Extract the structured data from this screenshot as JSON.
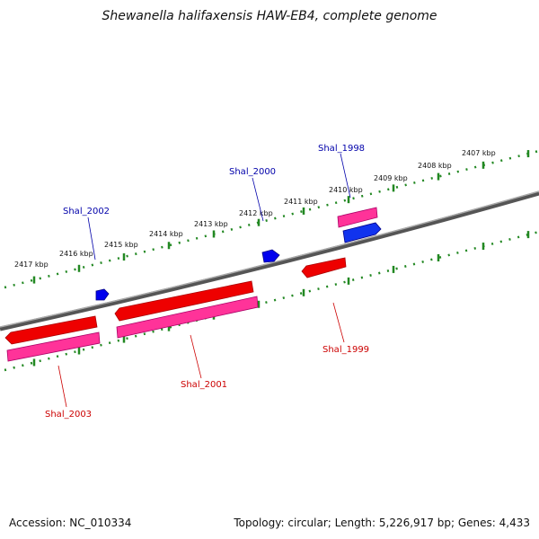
{
  "title": "Shewanella halifaxensis HAW-EB4, complete genome",
  "footer": {
    "accession": "Accession: NC_010334",
    "summary": "Topology: circular; Length: 5,226,917 bp; Genes: 4,433"
  },
  "colors": {
    "backbone": "#777777",
    "tick": "#228822",
    "forward_gene_label": "#0000aa",
    "reverse_gene_label": "#cc0000",
    "cds_red": "#ee0000",
    "gene_pink": "#ff3399",
    "gene_blue": "#0000ee",
    "text": "#111111"
  },
  "scale_labels": [
    "2417 kbp",
    "2416 kbp",
    "2415 kbp",
    "2414 kbp",
    "2413 kbp",
    "2412 kbp",
    "2411 kbp",
    "2410 kbp",
    "2409 kbp",
    "2408 kbp",
    "2407 kbp"
  ],
  "gene_labels": {
    "forward": [
      "Shal_2002",
      "Shal_2000",
      "Shal_1998"
    ],
    "reverse": [
      "Shal_2003",
      "Shal_2001",
      "Shal_1999"
    ]
  }
}
